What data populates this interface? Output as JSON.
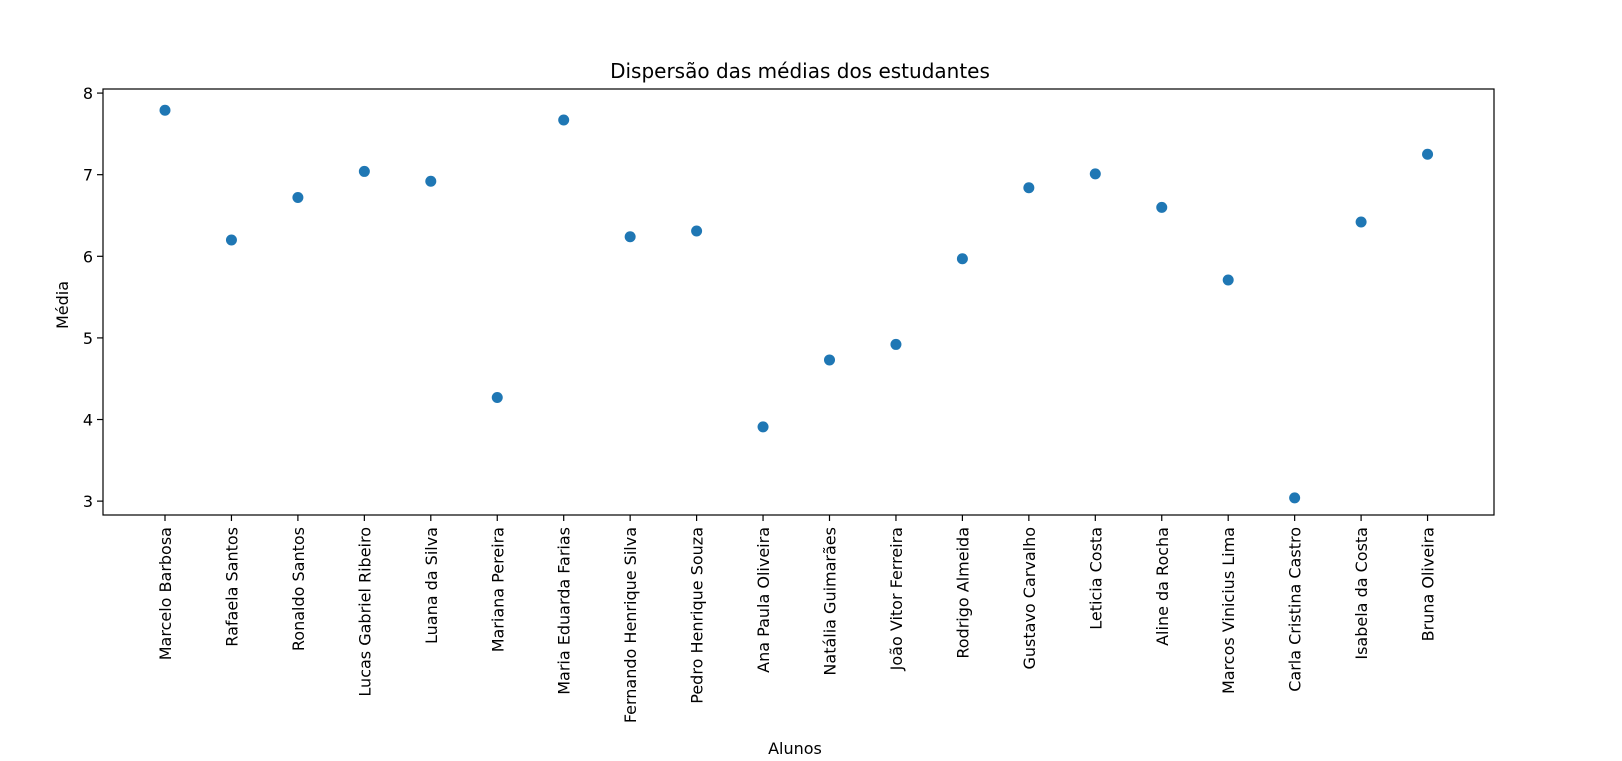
{
  "chart_data": {
    "type": "scatter",
    "title": "Dispersão das médias dos estudantes",
    "xlabel": "Alunos",
    "ylabel": "Média",
    "ylim": [
      2.83,
      8.05
    ],
    "yticks": [
      3,
      4,
      5,
      6,
      7,
      8
    ],
    "grid": false,
    "marker_color": "#1f77b4",
    "categories": [
      "Marcelo Barbosa",
      "Rafaela Santos",
      "Ronaldo Santos",
      "Lucas Gabriel Ribeiro",
      "Luana da Silva",
      "Mariana Pereira",
      "Maria Eduarda Farias",
      "Fernando Henrique Silva",
      "Pedro Henrique Souza",
      "Ana Paula Oliveira",
      "Natália Guimarães",
      "João Vitor Ferreira",
      "Rodrigo Almeida",
      "Gustavo Carvalho",
      "Leticia Costa",
      "Aline da Rocha",
      "Marcos Vinicius Lima",
      "Carla Cristina Castro",
      "Isabela da Costa",
      "Bruna Oliveira"
    ],
    "values": [
      7.79,
      6.2,
      6.72,
      7.04,
      6.92,
      4.27,
      7.67,
      6.24,
      6.31,
      3.91,
      4.73,
      4.92,
      5.97,
      6.84,
      7.01,
      6.6,
      5.71,
      3.04,
      6.42,
      7.25
    ]
  }
}
